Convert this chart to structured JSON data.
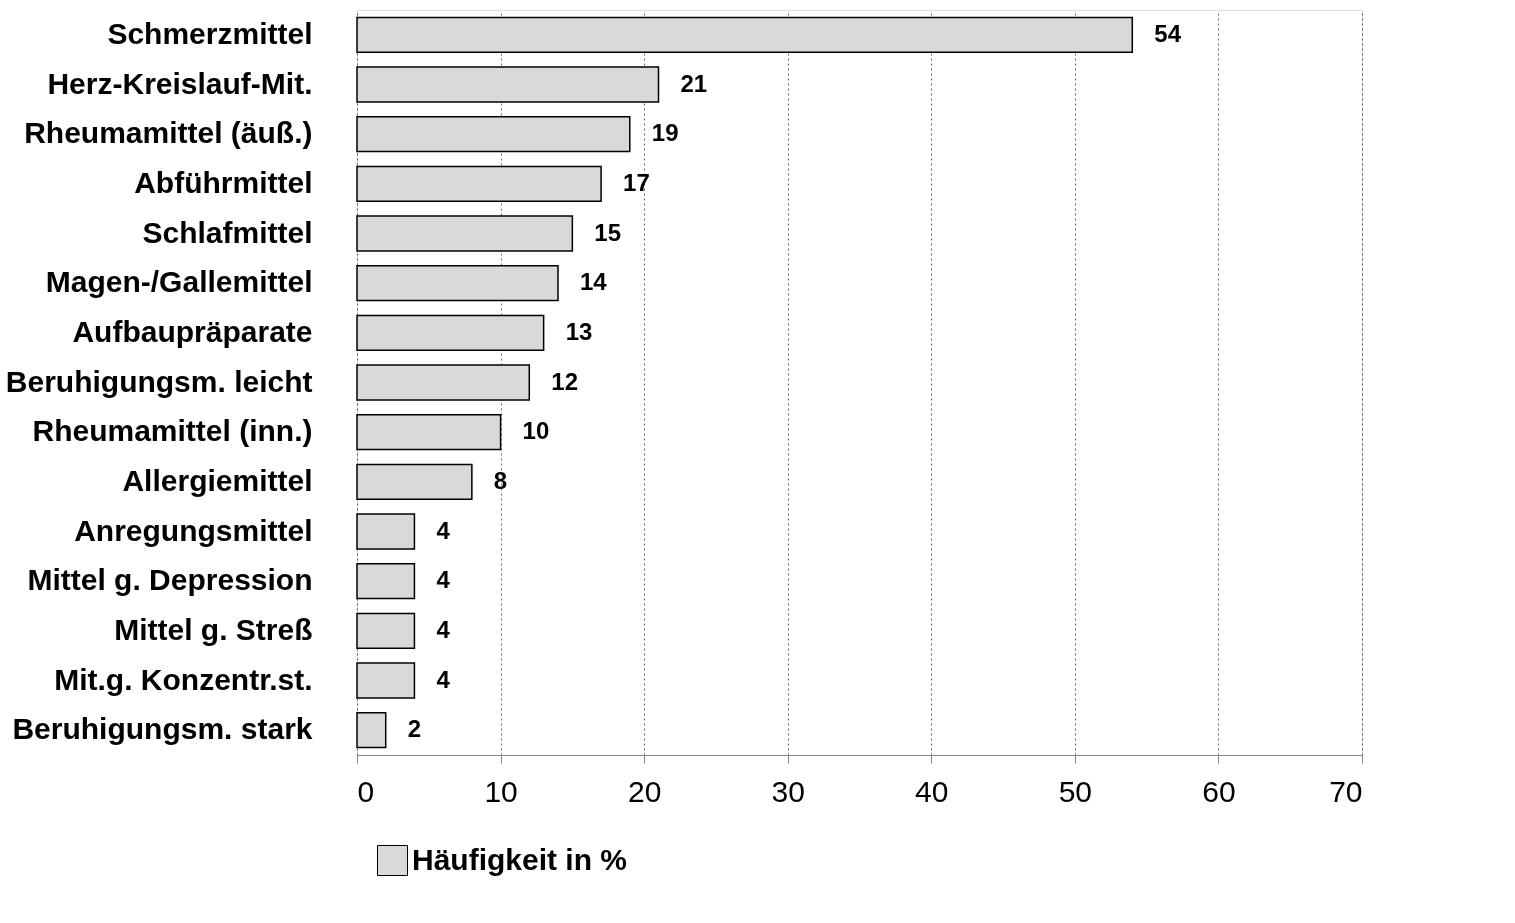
{
  "chart_data": {
    "type": "bar",
    "orientation": "horizontal",
    "categories": [
      "Schmerzmittel",
      "Herz-Kreislauf-Mit.",
      "Rheumamittel (äuß.)",
      "Abführmittel",
      "Schlafmittel",
      "Magen-/Gallemittel",
      "Aufbaupräparate",
      "Beruhigungsm. leicht",
      "Rheumamittel (inn.)",
      "Allergiemittel",
      "Anregungsmittel",
      "Mittel g. Depression",
      "Mittel g. Streß",
      "Mit.g. Konzentr.st.",
      "Beruhigungsm. stark"
    ],
    "series": [
      {
        "name": "Häufigkeit in %",
        "color": "#d9d9d9",
        "values": [
          54,
          21,
          19,
          17,
          15,
          14,
          13,
          12,
          10,
          8,
          4,
          4,
          4,
          4,
          2
        ]
      }
    ],
    "xlim": [
      0,
      70
    ],
    "xticks": [
      0,
      10,
      20,
      30,
      40,
      50,
      60,
      70
    ],
    "grid": "x",
    "legend": "bottom",
    "data_labels": true
  }
}
